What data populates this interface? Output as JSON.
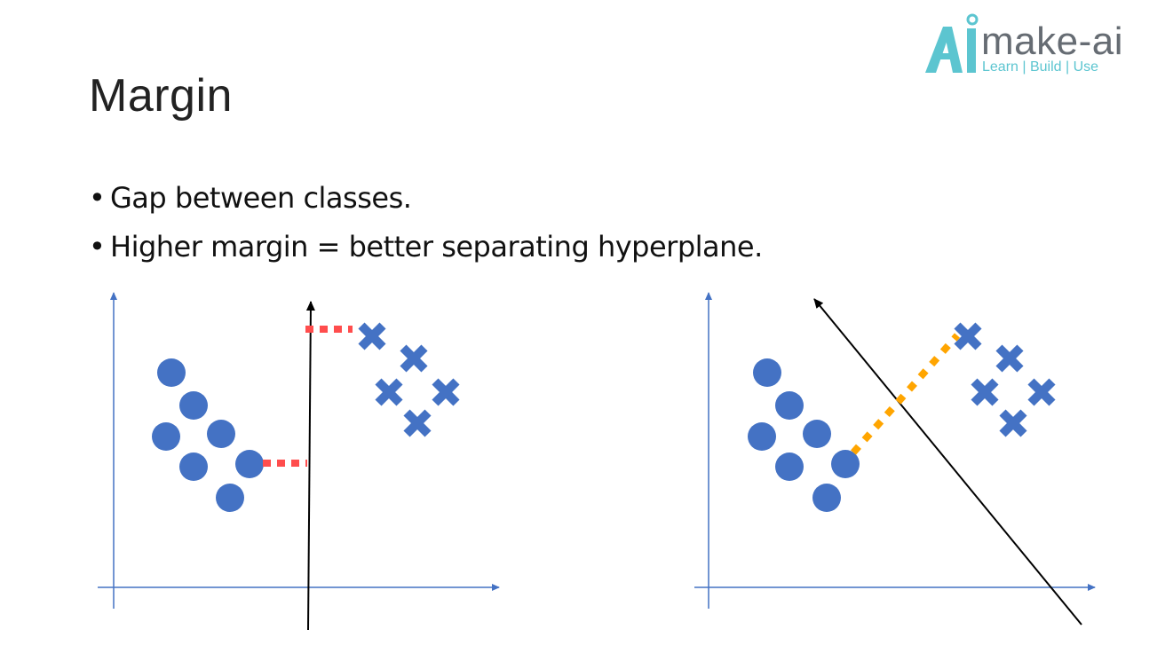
{
  "slide": {
    "title": "Margin",
    "bullets": [
      "Gap between classes.",
      "Higher margin = better separating hyperplane."
    ]
  },
  "logo": {
    "brand": "make-ai",
    "tagline": "Learn | Build | Use",
    "colors": {
      "accent": "#5cc5d0",
      "text": "#666c73"
    }
  },
  "colors": {
    "axis": "#4472c4",
    "marker": "#4472c4",
    "hyperplane": "#000000",
    "margin_left": "#ff4d4d",
    "margin_right": "#ffa500"
  },
  "icons": {
    "class_a": "circle",
    "class_b": "x-cross"
  }
}
